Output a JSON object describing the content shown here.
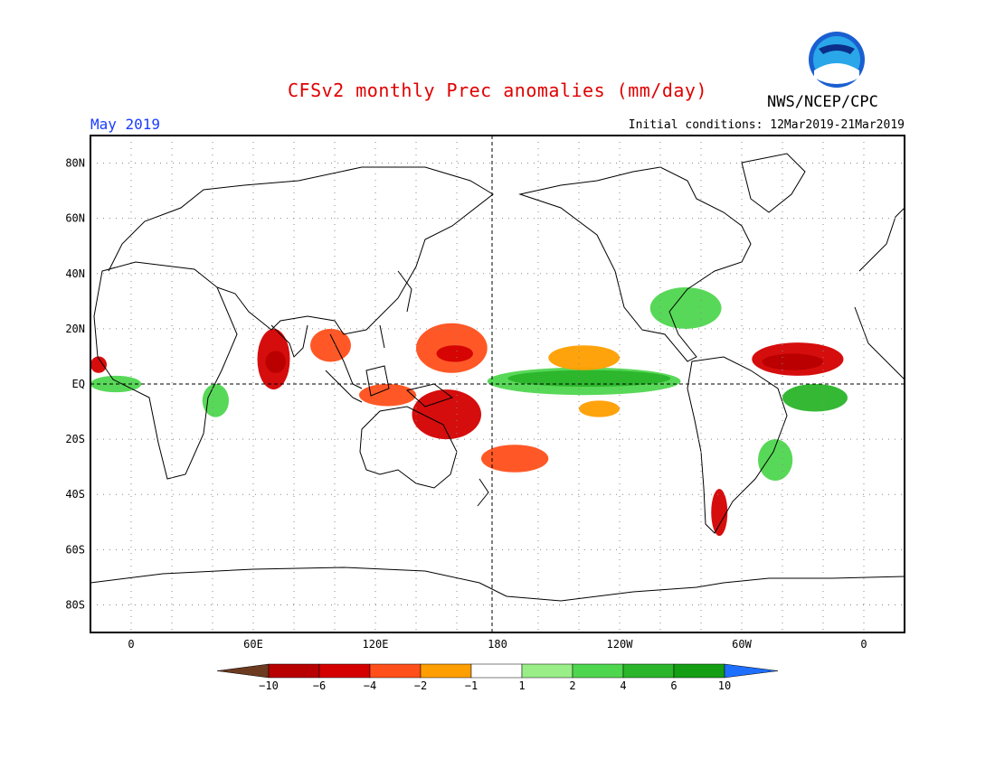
{
  "title": "CFSv2 monthly Prec anomalies (mm/day)",
  "period": "May 2019",
  "initial_conditions": "Initial conditions: 12Mar2019-21Mar2019",
  "organization": "NWS/NCEP/CPC",
  "logo_text": "NOAA",
  "map": {
    "projection": "equirectangular",
    "lon_range": [
      -20,
      380
    ],
    "lat_range": [
      -90,
      90
    ],
    "lat_ticks": [
      "80N",
      "60N",
      "40N",
      "20N",
      "EQ",
      "20S",
      "40S",
      "60S",
      "80S"
    ],
    "lon_ticks": [
      "0",
      "60E",
      "120E",
      "180",
      "120W",
      "60W",
      "0"
    ],
    "grid": "dotted 20°"
  },
  "colorbar": {
    "labels": [
      "-10",
      "-6",
      "-4",
      "-2",
      "-1",
      "1",
      "2",
      "4",
      "6",
      "10"
    ],
    "colors": [
      "#6b3a1f",
      "#b80000",
      "#d40000",
      "#ff4f1a",
      "#ff9e00",
      "#ffffff",
      "#99ee88",
      "#4fd64f",
      "#2ab52a",
      "#149e14",
      "#1f6fff"
    ]
  },
  "anomalies": [
    {
      "name": "north-indian-ocean-dry",
      "lon": [
        62,
        78
      ],
      "lat": [
        -2,
        20
      ],
      "level": -4
    },
    {
      "name": "north-indian-ocean-dry-core",
      "lon": [
        66,
        76
      ],
      "lat": [
        4,
        12
      ],
      "level": -6
    },
    {
      "name": "west-pacific-dry",
      "lon": [
        140,
        175
      ],
      "lat": [
        4,
        22
      ],
      "level": -2
    },
    {
      "name": "west-pacific-dry-core",
      "lon": [
        150,
        168
      ],
      "lat": [
        8,
        14
      ],
      "level": -4
    },
    {
      "name": "south-west-pacific-dry",
      "lon": [
        138,
        172
      ],
      "lat": [
        -20,
        -2
      ],
      "level": -4
    },
    {
      "name": "atlantic-itcz-dry",
      "lon": [
        305,
        350
      ],
      "lat": [
        3,
        15
      ],
      "level": -4
    },
    {
      "name": "atlantic-itcz-dry-core",
      "lon": [
        310,
        340
      ],
      "lat": [
        5,
        11
      ],
      "level": -6
    },
    {
      "name": "central-pacific-wet",
      "lon": [
        175,
        270
      ],
      "lat": [
        -4,
        6
      ],
      "level": 2
    },
    {
      "name": "central-pacific-wet-core",
      "lon": [
        185,
        265
      ],
      "lat": [
        -1,
        5
      ],
      "level": 4
    },
    {
      "name": "east-pacific-dry",
      "lon": [
        205,
        240
      ],
      "lat": [
        5,
        14
      ],
      "level": -1
    },
    {
      "name": "south-pacific-dry",
      "lon": [
        220,
        240
      ],
      "lat": [
        -12,
        -6
      ],
      "level": -1
    },
    {
      "name": "south-atlantic-wet",
      "lon": [
        320,
        352
      ],
      "lat": [
        -10,
        0
      ],
      "level": 4
    },
    {
      "name": "gulf-of-mexico-wet",
      "lon": [
        255,
        290
      ],
      "lat": [
        20,
        35
      ],
      "level": 2
    },
    {
      "name": "africa-east-wet",
      "lon": [
        35,
        48
      ],
      "lat": [
        -12,
        0
      ],
      "level": 2
    },
    {
      "name": "australia-south-dry",
      "lon": [
        172,
        205
      ],
      "lat": [
        -32,
        -22
      ],
      "level": -2
    },
    {
      "name": "chile-south-dry",
      "lon": [
        285,
        293
      ],
      "lat": [
        -55,
        -38
      ],
      "level": -4
    },
    {
      "name": "brazil-south-wet",
      "lon": [
        308,
        325
      ],
      "lat": [
        -35,
        -20
      ],
      "level": 2
    },
    {
      "name": "bay-of-bengal-dry",
      "lon": [
        88,
        108
      ],
      "lat": [
        8,
        20
      ],
      "level": -2
    },
    {
      "name": "indonesia-dry",
      "lon": [
        112,
        140
      ],
      "lat": [
        -8,
        0
      ],
      "level": -2
    },
    {
      "name": "atlantic-west-dry",
      "lon": [
        -20,
        -12
      ],
      "lat": [
        4,
        10
      ],
      "level": -4
    },
    {
      "name": "atlantic-east-wet",
      "lon": [
        -20,
        5
      ],
      "lat": [
        -3,
        3
      ],
      "level": 2
    }
  ]
}
